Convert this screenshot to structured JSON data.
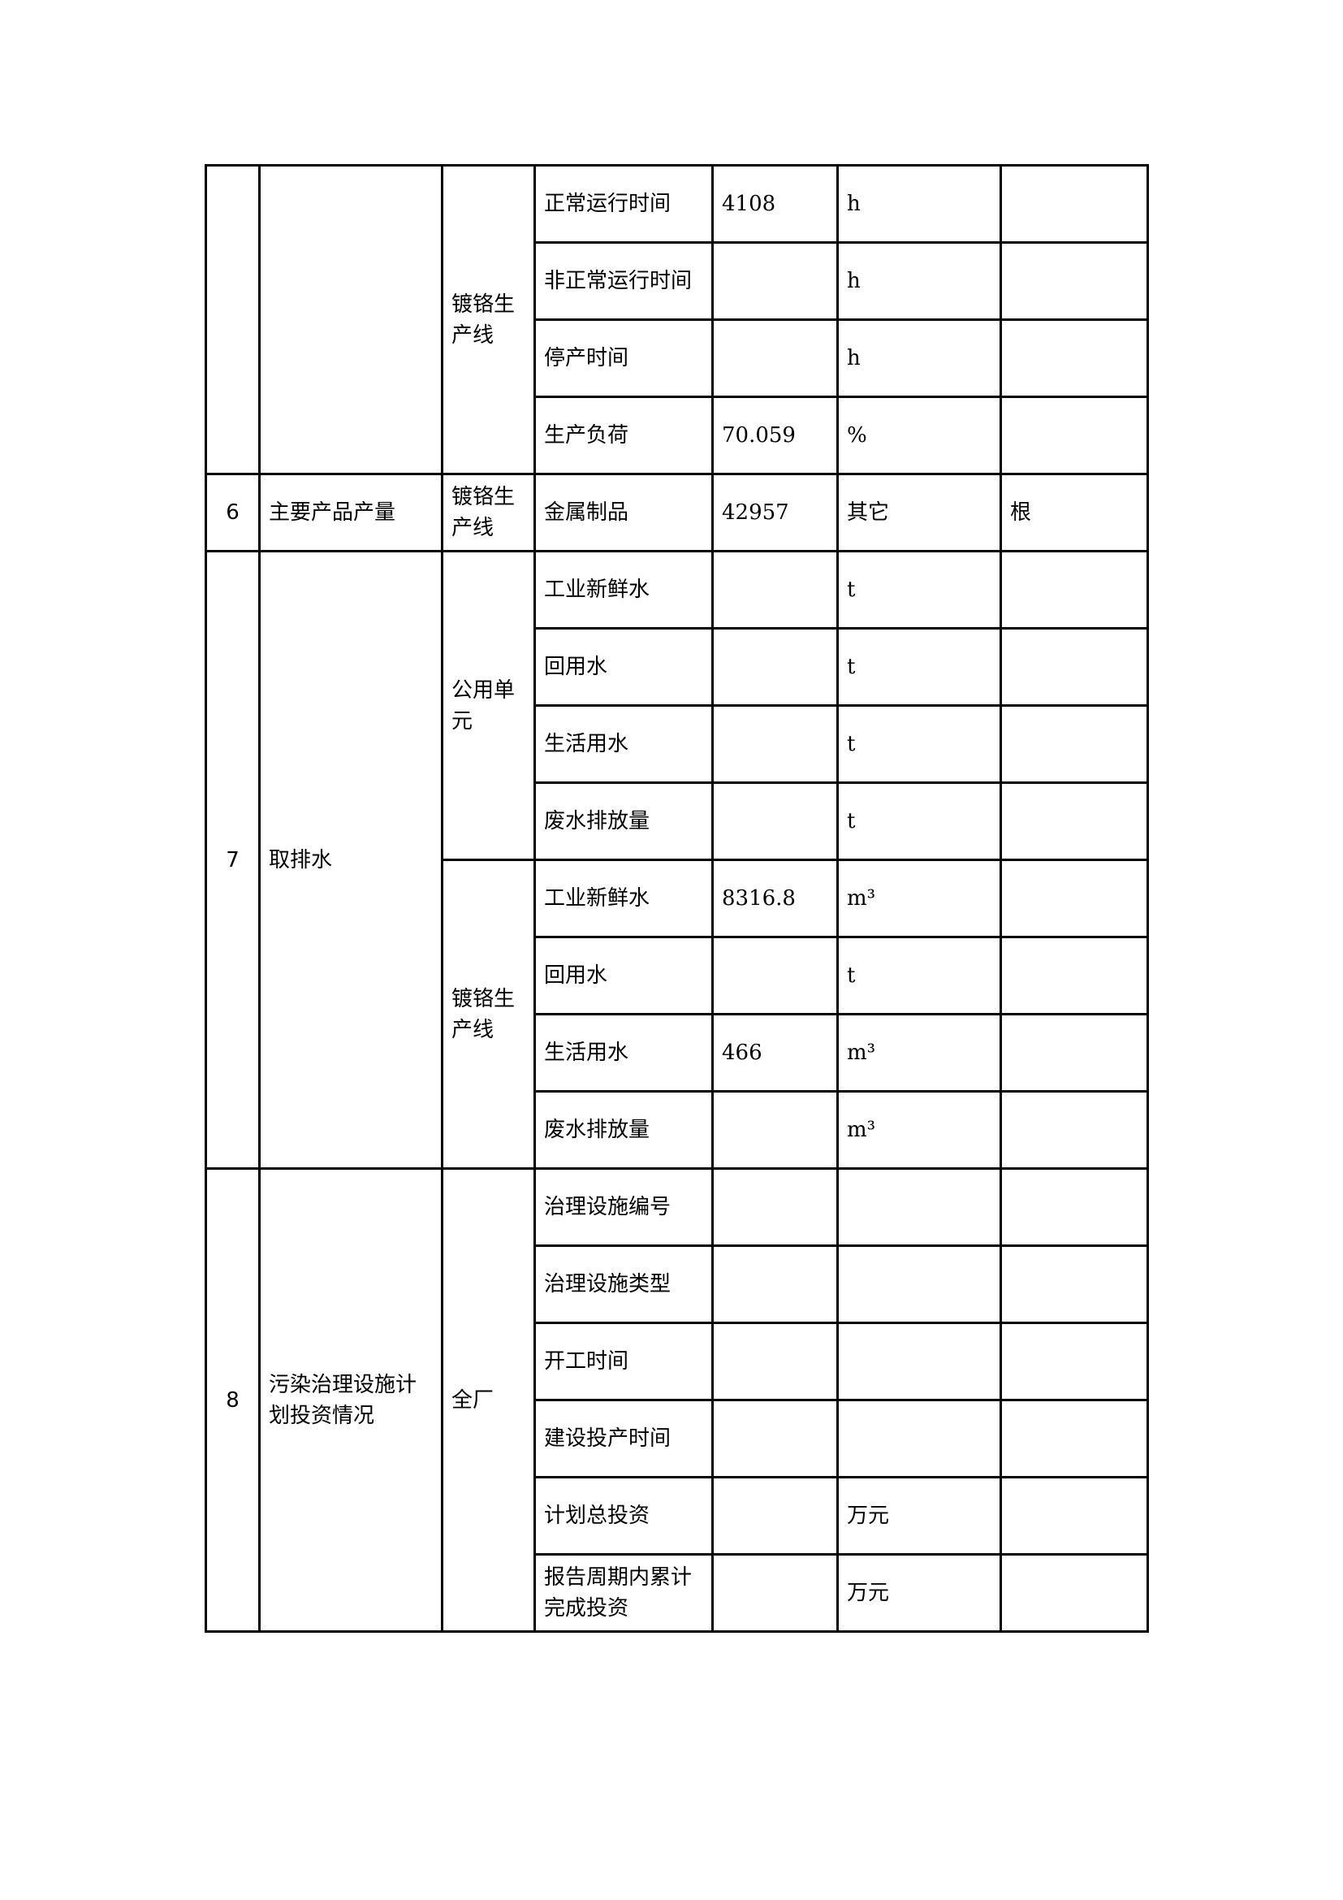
{
  "groups": [
    {
      "no": "",
      "item": "",
      "subgroups": [
        {
          "unit": "镀铬生产线",
          "rows": [
            {
              "indicator": "正常运行时间",
              "value": "4108",
              "unit": "h",
              "note": ""
            },
            {
              "indicator": "非正常运行时间",
              "value": "",
              "unit": "h",
              "note": ""
            },
            {
              "indicator": "停产时间",
              "value": "",
              "unit": "h",
              "note": ""
            },
            {
              "indicator": "生产负荷",
              "value": "70.059",
              "unit": "%",
              "note": ""
            }
          ]
        }
      ]
    },
    {
      "no": "6",
      "item": "主要产品产量",
      "subgroups": [
        {
          "unit": "镀铬生产线",
          "rows": [
            {
              "indicator": "金属制品",
              "value": "42957",
              "unit": "其它",
              "note": "根"
            }
          ]
        }
      ]
    },
    {
      "no": "7",
      "item": "取排水",
      "subgroups": [
        {
          "unit": "公用单元",
          "rows": [
            {
              "indicator": "工业新鲜水",
              "value": "",
              "unit": "t",
              "note": ""
            },
            {
              "indicator": "回用水",
              "value": "",
              "unit": "t",
              "note": ""
            },
            {
              "indicator": "生活用水",
              "value": "",
              "unit": "t",
              "note": ""
            },
            {
              "indicator": "废水排放量",
              "value": "",
              "unit": "t",
              "note": ""
            }
          ]
        },
        {
          "unit": "镀铬生产线",
          "rows": [
            {
              "indicator": "工业新鲜水",
              "value": "8316.8",
              "unit": "m³",
              "note": ""
            },
            {
              "indicator": "回用水",
              "value": "",
              "unit": "t",
              "note": ""
            },
            {
              "indicator": "生活用水",
              "value": "466",
              "unit": "m³",
              "note": ""
            },
            {
              "indicator": "废水排放量",
              "value": "",
              "unit": "m³",
              "note": ""
            }
          ]
        }
      ]
    },
    {
      "no": "8",
      "item": "污染治理设施计划投资情况",
      "subgroups": [
        {
          "unit": "全厂",
          "rows": [
            {
              "indicator": "治理设施编号",
              "value": "",
              "unit": "",
              "note": ""
            },
            {
              "indicator": "治理设施类型",
              "value": "",
              "unit": "",
              "note": ""
            },
            {
              "indicator": "开工时间",
              "value": "",
              "unit": "",
              "note": ""
            },
            {
              "indicator": "建设投产时间",
              "value": "",
              "unit": "",
              "note": ""
            },
            {
              "indicator": "计划总投资",
              "value": "",
              "unit": "万元",
              "note": ""
            },
            {
              "indicator": "报告周期内累计完成投资",
              "value": "",
              "unit": "万元",
              "note": ""
            }
          ]
        }
      ]
    }
  ]
}
